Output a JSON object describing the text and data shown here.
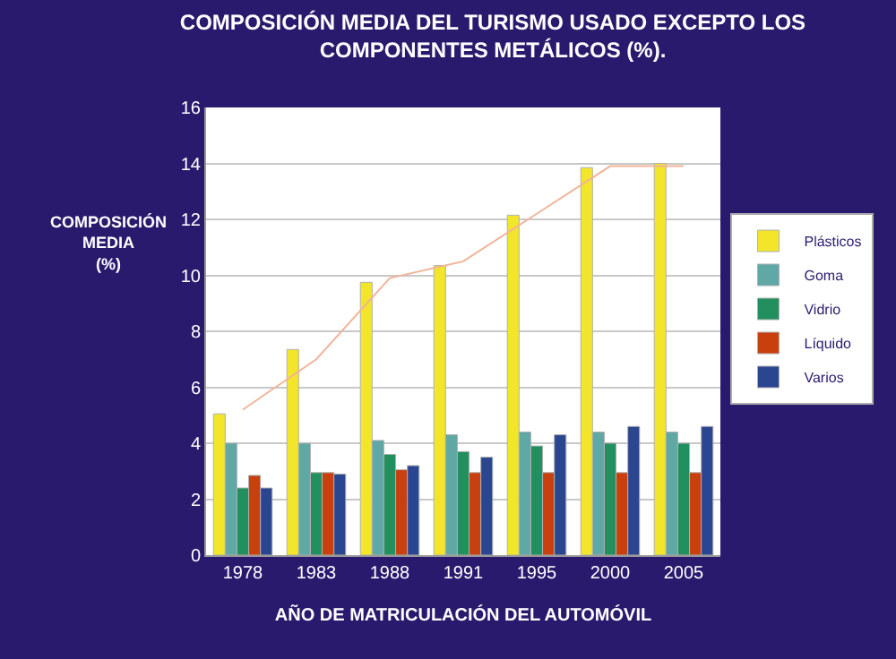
{
  "chart_data": {
    "type": "bar",
    "title": "COMPOSICIÓN MEDIA DEL TURISMO USADO EXCEPTO LOS COMPONENTES METÁLICOS (%).",
    "xlabel": "AÑO DE MATRICULACIÓN DEL AUTOMÓVIL",
    "ylabel": "COMPOSICIÓN MEDIA (%)",
    "categories": [
      "1978",
      "1983",
      "1988",
      "1991",
      "1995",
      "2000",
      "2005"
    ],
    "series": [
      {
        "name": "Plásticos",
        "color": "#f2e52a",
        "values": [
          5.05,
          7.35,
          9.75,
          10.35,
          12.15,
          13.85,
          14.0
        ]
      },
      {
        "name": "Goma",
        "color": "#5fa8a6",
        "values": [
          4.0,
          4.0,
          4.1,
          4.3,
          4.4,
          4.4,
          4.4
        ]
      },
      {
        "name": "Vidrio",
        "color": "#22905e",
        "values": [
          2.4,
          2.95,
          3.6,
          3.7,
          3.9,
          4.0,
          4.0
        ]
      },
      {
        "name": "Líquido",
        "color": "#c8400e",
        "values": [
          2.85,
          2.95,
          3.05,
          2.95,
          2.95,
          2.95,
          2.95
        ]
      },
      {
        "name": "Varios",
        "color": "#2a4690",
        "values": [
          2.4,
          2.9,
          3.2,
          3.5,
          4.3,
          4.6,
          4.6
        ]
      },
      {
        "type": "line",
        "color": "#f0b49a",
        "values": [
          5.2,
          7.0,
          9.9,
          10.5,
          12.2,
          13.9,
          13.9
        ]
      }
    ],
    "ylim": [
      0,
      16
    ],
    "yticks": [
      0,
      2,
      4,
      6,
      8,
      10,
      12,
      14,
      16
    ],
    "grid": "y",
    "legend": "right"
  }
}
